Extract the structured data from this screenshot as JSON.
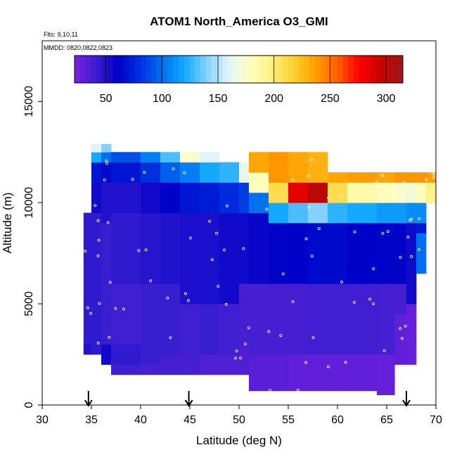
{
  "chart_data": {
    "type": "heatmap",
    "title": "ATOM1 North_America O3_GMI",
    "flights_label": "Flts: 9,10,11",
    "dates_label": "MMDD: 0820,0822,0823",
    "xlabel": "Latitude (deg N)",
    "ylabel": "Altitude (m)",
    "xlim": [
      30,
      70
    ],
    "ylim": [
      0,
      18000
    ],
    "xticks": [
      30,
      35,
      40,
      45,
      50,
      55,
      60,
      65,
      70
    ],
    "yticks": [
      0,
      5000,
      10000,
      15000
    ],
    "colorbar": {
      "min": 22,
      "max": 315,
      "ticks": [
        50,
        100,
        150,
        200,
        250,
        300
      ],
      "colors": [
        "#7a1fe0",
        "#3a1fd0",
        "#0000c8",
        "#0030e0",
        "#0070f0",
        "#10a8ff",
        "#80d0ff",
        "#dff2ff",
        "#ffffc0",
        "#fff080",
        "#ffd030",
        "#ffa000",
        "#ff6000",
        "#ff0000",
        "#c80000",
        "#9a1a1a"
      ]
    },
    "arrows_x": [
      34.7,
      44.9,
      67.0
    ],
    "grid": false,
    "legend": "none",
    "columns": [
      {
        "x0": 34.2,
        "x1": 35.0,
        "segments": [
          [
            2500,
            3000,
            50
          ],
          [
            3000,
            9500,
            45
          ]
        ]
      },
      {
        "x0": 35.0,
        "x1": 36.0,
        "segments": [
          [
            2500,
            9500,
            45
          ],
          [
            9500,
            11000,
            55
          ],
          [
            11000,
            12000,
            70
          ],
          [
            12000,
            12500,
            120
          ],
          [
            12500,
            12900,
            160
          ]
        ]
      },
      {
        "x0": 36.0,
        "x1": 37.0,
        "segments": [
          [
            2000,
            3000,
            55
          ],
          [
            3000,
            9000,
            42
          ],
          [
            9000,
            11000,
            50
          ],
          [
            11000,
            12000,
            65
          ],
          [
            12000,
            12500,
            100
          ],
          [
            12500,
            12900,
            140
          ]
        ]
      },
      {
        "x0": 37.0,
        "x1": 40.0,
        "segments": [
          [
            1500,
            2000,
            40
          ],
          [
            2000,
            3000,
            45
          ],
          [
            3000,
            6000,
            40
          ],
          [
            6000,
            9500,
            45
          ],
          [
            9500,
            11000,
            50
          ],
          [
            11000,
            12000,
            70
          ],
          [
            12000,
            12500,
            90
          ]
        ]
      },
      {
        "x0": 40.0,
        "x1": 42.0,
        "segments": [
          [
            1500,
            2000,
            38
          ],
          [
            2000,
            6000,
            42
          ],
          [
            6000,
            9500,
            48
          ],
          [
            9500,
            11000,
            55
          ],
          [
            11000,
            12000,
            80
          ],
          [
            12000,
            12500,
            105
          ]
        ]
      },
      {
        "x0": 42.0,
        "x1": 44.0,
        "segments": [
          [
            1500,
            2500,
            38
          ],
          [
            2500,
            6000,
            42
          ],
          [
            6000,
            9500,
            50
          ],
          [
            9500,
            11000,
            62
          ],
          [
            11000,
            12000,
            95
          ],
          [
            12000,
            12500,
            130
          ]
        ]
      },
      {
        "x0": 44.0,
        "x1": 46.0,
        "segments": [
          [
            1500,
            2500,
            38
          ],
          [
            2500,
            5000,
            40
          ],
          [
            5000,
            9500,
            52
          ],
          [
            9500,
            11000,
            70
          ],
          [
            11000,
            12000,
            105
          ],
          [
            12000,
            12500,
            175
          ]
        ]
      },
      {
        "x0": 46.0,
        "x1": 48.0,
        "segments": [
          [
            1500,
            2500,
            35
          ],
          [
            2500,
            5000,
            42
          ],
          [
            5000,
            9500,
            52
          ],
          [
            9500,
            11000,
            72
          ],
          [
            11000,
            12000,
            120
          ],
          [
            12000,
            12500,
            160
          ]
        ]
      },
      {
        "x0": 48.0,
        "x1": 50.0,
        "segments": [
          [
            1500,
            2500,
            35
          ],
          [
            2500,
            5000,
            40
          ],
          [
            5000,
            9500,
            55
          ],
          [
            9500,
            11000,
            78
          ],
          [
            11000,
            12000,
            125
          ],
          [
            12000,
            12000,
            150
          ]
        ]
      },
      {
        "x0": 50.0,
        "x1": 51.0,
        "segments": [
          [
            1500,
            3000,
            35
          ],
          [
            3000,
            6000,
            38
          ],
          [
            6000,
            9500,
            55
          ],
          [
            9500,
            11000,
            85
          ],
          [
            11000,
            12000,
            165
          ]
        ]
      },
      {
        "x0": 51.0,
        "x1": 53.0,
        "segments": [
          [
            700,
            2500,
            32
          ],
          [
            2500,
            6000,
            38
          ],
          [
            6000,
            9500,
            58
          ],
          [
            9500,
            10500,
            100
          ],
          [
            10500,
            11500,
            180
          ],
          [
            11500,
            12500,
            235
          ]
        ]
      },
      {
        "x0": 53.0,
        "x1": 55.0,
        "segments": [
          [
            700,
            2500,
            32
          ],
          [
            2500,
            6000,
            38
          ],
          [
            6000,
            9000,
            60
          ],
          [
            9000,
            10000,
            120
          ],
          [
            10000,
            11000,
            210
          ],
          [
            11000,
            12500,
            240
          ]
        ]
      },
      {
        "x0": 55.0,
        "x1": 57.0,
        "segments": [
          [
            700,
            2500,
            30
          ],
          [
            2500,
            6000,
            38
          ],
          [
            6000,
            9000,
            62
          ],
          [
            9000,
            10000,
            130
          ],
          [
            10000,
            11000,
            285
          ],
          [
            11000,
            12500,
            235
          ]
        ]
      },
      {
        "x0": 57.0,
        "x1": 59.0,
        "segments": [
          [
            700,
            2500,
            30
          ],
          [
            2500,
            6000,
            40
          ],
          [
            6000,
            9000,
            65
          ],
          [
            9000,
            10000,
            140
          ],
          [
            10000,
            11000,
            300
          ],
          [
            11000,
            12500,
            230
          ]
        ]
      },
      {
        "x0": 59.0,
        "x1": 61.0,
        "segments": [
          [
            700,
            2500,
            30
          ],
          [
            2500,
            6000,
            40
          ],
          [
            6000,
            9000,
            65
          ],
          [
            9000,
            10000,
            125
          ],
          [
            10000,
            11000,
            210
          ],
          [
            11000,
            11500,
            235
          ]
        ]
      },
      {
        "x0": 61.0,
        "x1": 64.0,
        "segments": [
          [
            700,
            2500,
            30
          ],
          [
            2500,
            6000,
            40
          ],
          [
            6000,
            9000,
            62
          ],
          [
            9000,
            10000,
            120
          ],
          [
            10000,
            11000,
            185
          ],
          [
            11000,
            11500,
            238
          ]
        ]
      },
      {
        "x0": 64.0,
        "x1": 65.8,
        "segments": [
          [
            500,
            2500,
            28
          ],
          [
            2500,
            6000,
            38
          ],
          [
            6000,
            9000,
            60
          ],
          [
            9000,
            10000,
            115
          ],
          [
            10000,
            11000,
            180
          ],
          [
            11000,
            11500,
            235
          ]
        ]
      },
      {
        "x0": 65.8,
        "x1": 67.0,
        "segments": [
          [
            2000,
            4500,
            30
          ],
          [
            4500,
            6000,
            38
          ],
          [
            6000,
            9000,
            60
          ],
          [
            9000,
            10000,
            115
          ],
          [
            10000,
            11000,
            175
          ],
          [
            11000,
            11500,
            240
          ]
        ]
      },
      {
        "x0": 67.0,
        "x1": 68.0,
        "segments": [
          [
            2000,
            5000,
            28
          ],
          [
            5000,
            9000,
            55
          ],
          [
            9000,
            10000,
            110
          ],
          [
            10000,
            11000,
            170
          ],
          [
            11000,
            11500,
            240
          ]
        ]
      },
      {
        "x0": 68.0,
        "x1": 69.0,
        "segments": [
          [
            6500,
            8500,
            100
          ],
          [
            8500,
            9000,
            70
          ],
          [
            9000,
            10000,
            110
          ],
          [
            10000,
            11000,
            180
          ],
          [
            11000,
            11500,
            240
          ]
        ]
      },
      {
        "x0": 69.0,
        "x1": 70.0,
        "segments": [
          [
            10000,
            11000,
            195
          ],
          [
            11000,
            11500,
            238
          ]
        ]
      }
    ]
  }
}
